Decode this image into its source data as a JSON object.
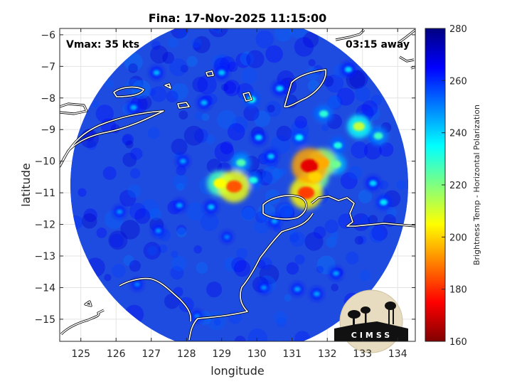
{
  "chart_data": {
    "type": "heatmap",
    "title": "Fina: 17-Nov-2025 11:15:00",
    "xlabel": "longitude",
    "ylabel": "latitude",
    "xlim": [
      124.4,
      134.5
    ],
    "ylim": [
      -15.7,
      -5.8
    ],
    "x_ticks": [
      125,
      126,
      127,
      128,
      129,
      130,
      131,
      132,
      133,
      134
    ],
    "y_ticks": [
      -6,
      -7,
      -8,
      -9,
      -10,
      -11,
      -12,
      -13,
      -14,
      -15
    ],
    "grid": true,
    "colorbar": {
      "label": "Brightness Temp - Horizontal Polarization",
      "range": [
        160,
        280
      ],
      "ticks": [
        160,
        180,
        200,
        220,
        240,
        260,
        280
      ],
      "colormap": "jet"
    },
    "annotations": {
      "vmax": "Vmax: 35 kts",
      "time_away": "03:15 away"
    },
    "swath": {
      "center": [
        129.5,
        -10.75
      ],
      "radius_deg": 4.8
    },
    "cells": [
      {
        "lon": 129.35,
        "lat": -10.8,
        "tb": 185
      },
      {
        "lon": 128.95,
        "lat": -10.7,
        "tb": 205
      },
      {
        "lon": 131.5,
        "lat": -10.15,
        "tb": 172
      },
      {
        "lon": 131.4,
        "lat": -11.0,
        "tb": 182
      },
      {
        "lon": 131.85,
        "lat": -10.05,
        "tb": 195
      },
      {
        "lon": 131.65,
        "lat": -10.5,
        "tb": 200
      },
      {
        "lon": 132.25,
        "lat": -10.1,
        "tb": 222
      },
      {
        "lon": 132.9,
        "lat": -8.9,
        "tb": 212
      },
      {
        "lon": 133.45,
        "lat": -9.2,
        "tb": 228
      },
      {
        "lon": 129.55,
        "lat": -10.05,
        "tb": 226
      },
      {
        "lon": 129.9,
        "lat": -10.6,
        "tb": 232
      },
      {
        "lon": 131.9,
        "lat": -8.5,
        "tb": 230
      },
      {
        "lon": 132.3,
        "lat": -9.5,
        "tb": 232
      },
      {
        "lon": 131.2,
        "lat": -9.25,
        "tb": 236
      },
      {
        "lon": 130.65,
        "lat": -7.7,
        "tb": 240
      },
      {
        "lon": 129.85,
        "lat": -8.05,
        "tb": 234
      },
      {
        "lon": 130.05,
        "lat": -9.25,
        "tb": 240
      },
      {
        "lon": 130.4,
        "lat": -9.85,
        "tb": 242
      },
      {
        "lon": 128.7,
        "lat": -11.45,
        "tb": 243
      },
      {
        "lon": 127.9,
        "lat": -10.0,
        "tb": 246
      },
      {
        "lon": 127.8,
        "lat": -11.4,
        "tb": 246
      },
      {
        "lon": 129.0,
        "lat": -7.2,
        "tb": 242
      },
      {
        "lon": 128.5,
        "lat": -8.15,
        "tb": 244
      },
      {
        "lon": 132.6,
        "lat": -7.1,
        "tb": 240
      },
      {
        "lon": 126.5,
        "lat": -8.3,
        "tb": 244
      },
      {
        "lon": 127.15,
        "lat": -7.2,
        "tb": 244
      },
      {
        "lon": 126.1,
        "lat": -11.6,
        "tb": 248
      },
      {
        "lon": 127.2,
        "lat": -12.2,
        "tb": 248
      },
      {
        "lon": 129.15,
        "lat": -12.4,
        "tb": 250
      },
      {
        "lon": 130.5,
        "lat": -11.9,
        "tb": 246
      },
      {
        "lon": 132.25,
        "lat": -13.55,
        "tb": 246
      },
      {
        "lon": 131.7,
        "lat": -14.2,
        "tb": 246
      },
      {
        "lon": 131.15,
        "lat": -14.05,
        "tb": 246
      },
      {
        "lon": 130.2,
        "lat": -14.0,
        "tb": 248
      },
      {
        "lon": 133.6,
        "lat": -11.3,
        "tb": 238
      },
      {
        "lon": 133.3,
        "lat": -10.7,
        "tb": 240
      },
      {
        "lon": 126.6,
        "lat": -13.9,
        "tb": 250
      },
      {
        "lon": 128.3,
        "lat": -14.9,
        "tb": 250
      }
    ]
  },
  "logo": {
    "text": "CIMSS"
  }
}
